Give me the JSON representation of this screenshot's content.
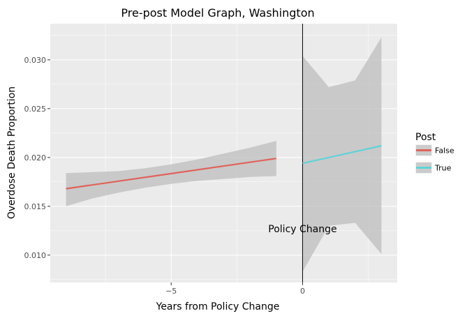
{
  "chart_data": {
    "type": "line",
    "title": "Pre-post Model Graph, Washington",
    "xlabel": "Years from Policy Change",
    "ylabel": "Overdose Death Proportion",
    "xlim": [
      -9.6,
      3.6
    ],
    "ylim": [
      0.0072,
      0.0337
    ],
    "x_ticks": [
      -5,
      0
    ],
    "x_tick_labels": [
      "−5",
      "0"
    ],
    "y_ticks": [
      0.01,
      0.015,
      0.02,
      0.025,
      0.03
    ],
    "y_tick_labels": [
      "0.010",
      "0.015",
      "0.020",
      "0.025",
      "0.030"
    ],
    "grid": true,
    "legend": {
      "title": "Post",
      "placement": "right",
      "entries": [
        {
          "label": "False",
          "color": "#e0625a"
        },
        {
          "label": "True",
          "color": "#5fd3d8"
        }
      ]
    },
    "series": [
      {
        "name": "False",
        "color": "#e0625a",
        "x": [
          -9,
          -1
        ],
        "y": [
          0.0168,
          0.0199
        ],
        "ribbon": {
          "x": [
            -9,
            -8,
            -7,
            -6,
            -5,
            -4,
            -3,
            -2,
            -1
          ],
          "lower": [
            0.015,
            0.0158,
            0.0164,
            0.0169,
            0.0173,
            0.0176,
            0.0178,
            0.018,
            0.0181
          ],
          "upper": [
            0.0184,
            0.0185,
            0.0186,
            0.0189,
            0.0193,
            0.0198,
            0.0204,
            0.021,
            0.0217
          ]
        }
      },
      {
        "name": "True",
        "color": "#5fd3d8",
        "x": [
          0,
          3
        ],
        "y": [
          0.0194,
          0.0212
        ],
        "ribbon": {
          "x": [
            0,
            1,
            2,
            3
          ],
          "lower": [
            0.0083,
            0.013,
            0.0133,
            0.0101
          ],
          "upper": [
            0.0304,
            0.0272,
            0.0279,
            0.0323
          ]
        }
      }
    ],
    "vline": {
      "x": 0,
      "color": "#000000"
    },
    "annotations": [
      {
        "text": "Policy Change",
        "x": 0,
        "y": 0.0127
      }
    ],
    "colors": {
      "panel_background": "#ebebeb",
      "grid_major": "#ffffff",
      "ribbon_fill": "#bdbdbd"
    }
  }
}
